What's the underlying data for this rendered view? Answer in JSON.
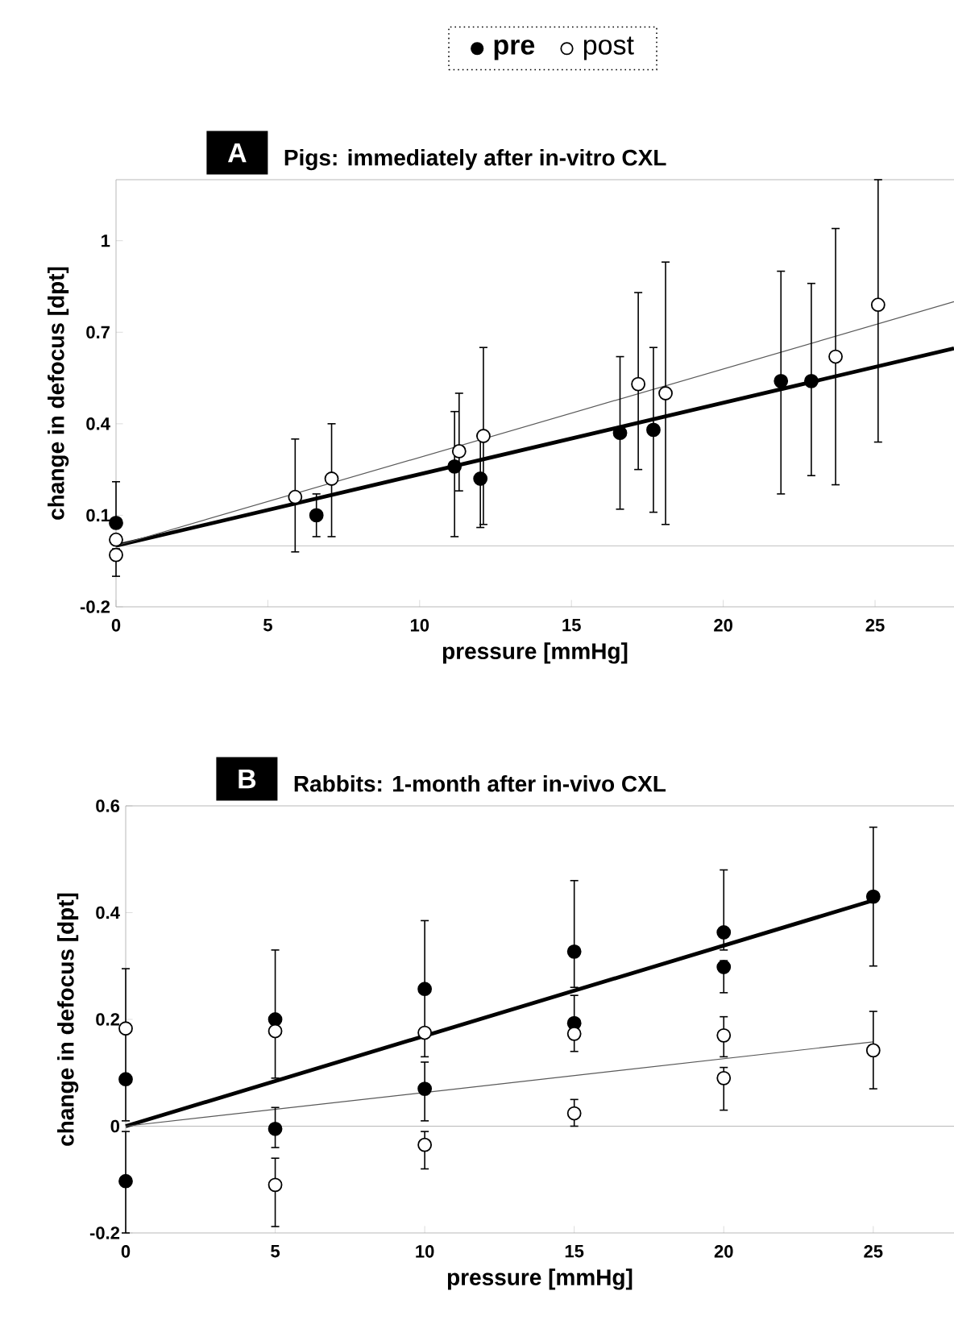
{
  "chart_data": [
    {
      "type": "scatter",
      "title": "Pigs: immediately after in-vitro CXL",
      "xlabel": "pressure [mmHg]",
      "ylabel": "change in defocus [dpt]",
      "annotations": [
        "A"
      ],
      "legend": "top",
      "marker": "circle",
      "xlim": [
        0,
        27.6
      ],
      "ylim": [
        -0.2,
        1.2
      ],
      "xticks": [
        0,
        5,
        10,
        15,
        20,
        25
      ],
      "yticks": [
        -0.2,
        0.1,
        0.4,
        0.7,
        1
      ],
      "ref_lines": [
        {
          "axis": "y",
          "value": 0,
          "color": "#a6a6a6"
        }
      ],
      "series": [
        {
          "name": "pre",
          "color": "#000000",
          "x": [
            0,
            6.6,
            11.15,
            12.0,
            16.6,
            17.7,
            21.9,
            22.9
          ],
          "values": [
            0.075,
            0.1,
            0.26,
            0.22,
            0.37,
            0.38,
            0.54,
            0.54
          ],
          "errors": [
            [
              0.06,
              0.21
            ],
            [
              0.03,
              0.17
            ],
            [
              0.03,
              0.44
            ],
            [
              0.06,
              0.36
            ],
            [
              0.12,
              0.62
            ],
            [
              0.11,
              0.65
            ],
            [
              0.17,
              0.9
            ],
            [
              0.23,
              0.86
            ]
          ]
        },
        {
          "name": "post",
          "color": "#ffffff",
          "x": [
            0,
            0,
            5.9,
            7.1,
            11.3,
            12.1,
            17.2,
            18.1,
            23.7,
            25.1
          ],
          "values": [
            0.02,
            -0.03,
            0.16,
            0.22,
            0.31,
            0.36,
            0.53,
            0.5,
            0.62,
            0.79
          ],
          "errors": [
            null,
            [
              -0.1,
              -0.01
            ],
            [
              -0.02,
              0.35
            ],
            [
              0.03,
              0.4
            ],
            [
              0.18,
              0.5
            ],
            [
              0.07,
              0.65
            ],
            [
              0.25,
              0.83
            ],
            [
              0.07,
              0.93
            ],
            [
              0.2,
              1.04
            ],
            [
              0.34,
              1.2
            ]
          ]
        },
        {
          "type": "line",
          "marker": "none",
          "color": "#000000",
          "x": [
            0,
            27.6
          ],
          "values": [
            0,
            0.647
          ]
        },
        {
          "type": "line",
          "marker": "none",
          "color": "#595959",
          "x": [
            0,
            27.6
          ],
          "values": [
            0,
            0.8
          ]
        }
      ]
    },
    {
      "type": "scatter",
      "title": "Rabbits: 1-month after in-vivo CXL",
      "xlabel": "pressure [mmHg]",
      "ylabel": "change in defocus [dpt]",
      "annotations": [
        "B"
      ],
      "marker": "circle",
      "xlim": [
        0,
        27.7
      ],
      "ylim": [
        -0.2,
        0.6
      ],
      "xticks": [
        0,
        5,
        10,
        15,
        20,
        25
      ],
      "yticks": [
        -0.2,
        0,
        0.2,
        0.4,
        0.6
      ],
      "ref_lines": [
        {
          "axis": "y",
          "value": 0,
          "color": "#a6a6a6"
        }
      ],
      "series": [
        {
          "color": "#000000",
          "x": [
            0,
            0,
            5,
            5,
            10,
            10,
            15,
            15,
            20,
            20,
            25
          ],
          "values": [
            0.088,
            -0.103,
            0.2,
            -0.005,
            0.257,
            0.07,
            0.327,
            0.193,
            0.363,
            0.298,
            0.43
          ],
          "errors": [
            [
              0.01,
              0.295
            ],
            [
              -0.2,
              -0.01
            ],
            [
              0.09,
              0.33
            ],
            [
              -0.04,
              0.035
            ],
            [
              0.13,
              0.385
            ],
            [
              0.01,
              0.12
            ],
            [
              0.26,
              0.46
            ],
            [
              0.14,
              0.245
            ],
            [
              0.33,
              0.48
            ],
            [
              0.25,
              0.31
            ],
            [
              0.3,
              0.56
            ]
          ]
        },
        {
          "color": "#ffffff",
          "x": [
            0,
            5,
            5,
            10,
            10,
            15,
            15,
            20,
            20,
            25
          ],
          "values": [
            0.183,
            0.178,
            -0.11,
            0.175,
            -0.035,
            0.173,
            0.024,
            0.17,
            0.09,
            0.142
          ],
          "errors": [
            null,
            null,
            [
              -0.188,
              -0.06
            ],
            null,
            [
              -0.08,
              -0.01
            ],
            null,
            [
              0.0,
              0.05
            ],
            [
              0.13,
              0.205
            ],
            [
              0.03,
              0.11
            ],
            [
              0.07,
              0.215
            ]
          ]
        },
        {
          "type": "line",
          "marker": "none",
          "color": "#000000",
          "x": [
            0,
            25
          ],
          "values": [
            0,
            0.423
          ]
        },
        {
          "type": "line",
          "marker": "none",
          "color": "#595959",
          "x": [
            0,
            25
          ],
          "values": [
            0,
            0.158
          ]
        }
      ]
    }
  ]
}
